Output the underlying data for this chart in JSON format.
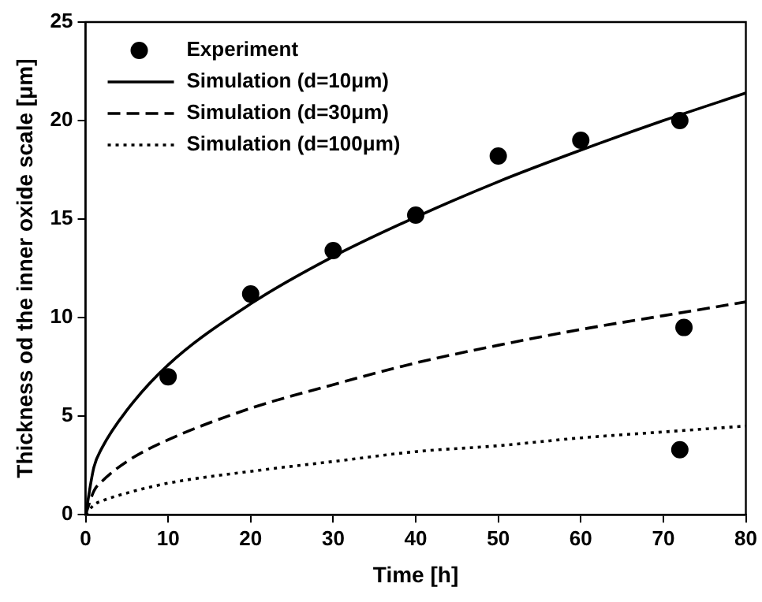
{
  "chart_data": {
    "type": "line",
    "xlabel": "Time [h]",
    "ylabel": "Thickness od the inner oxide scale [μm]",
    "xlim": [
      0,
      80
    ],
    "xticks": [
      0,
      10,
      20,
      30,
      40,
      50,
      60,
      70,
      80
    ],
    "ylim": [
      0,
      25
    ],
    "yticks": [
      0,
      5,
      10,
      15,
      20,
      25
    ],
    "grid": false,
    "legend": "top left",
    "series": [
      {
        "name": "Experiment",
        "type": "scatter",
        "marker": "circle",
        "color": "#000000",
        "x": [
          10,
          20,
          30,
          40,
          50,
          60,
          72,
          72.5,
          72
        ],
        "values": [
          7.0,
          11.2,
          13.4,
          15.2,
          18.2,
          19.0,
          20.0,
          9.5,
          3.3
        ]
      },
      {
        "name": "Simulation (d=10μm)",
        "line_style": "solid",
        "color": "#000000",
        "x": [
          0,
          1,
          2,
          5,
          10,
          20,
          30,
          40,
          50,
          60,
          70,
          80
        ],
        "values": [
          0,
          2.4,
          3.4,
          5.3,
          7.6,
          10.7,
          13.1,
          15.1,
          16.9,
          18.5,
          20.0,
          21.4
        ]
      },
      {
        "name": "Simulation (d=30μm)",
        "line_style": "dashed",
        "color": "#000000",
        "x": [
          0,
          1,
          2,
          5,
          10,
          20,
          30,
          40,
          50,
          60,
          70,
          80
        ],
        "values": [
          0,
          1.2,
          1.7,
          2.7,
          3.8,
          5.4,
          6.6,
          7.7,
          8.6,
          9.4,
          10.1,
          10.8
        ]
      },
      {
        "name": "Simulation (d=100μm)",
        "line_style": "dotted",
        "color": "#000000",
        "x": [
          0,
          1,
          2,
          5,
          10,
          20,
          30,
          40,
          50,
          60,
          70,
          80
        ],
        "values": [
          0,
          0.5,
          0.7,
          1.1,
          1.6,
          2.2,
          2.7,
          3.2,
          3.5,
          3.9,
          4.2,
          4.5
        ]
      }
    ]
  }
}
